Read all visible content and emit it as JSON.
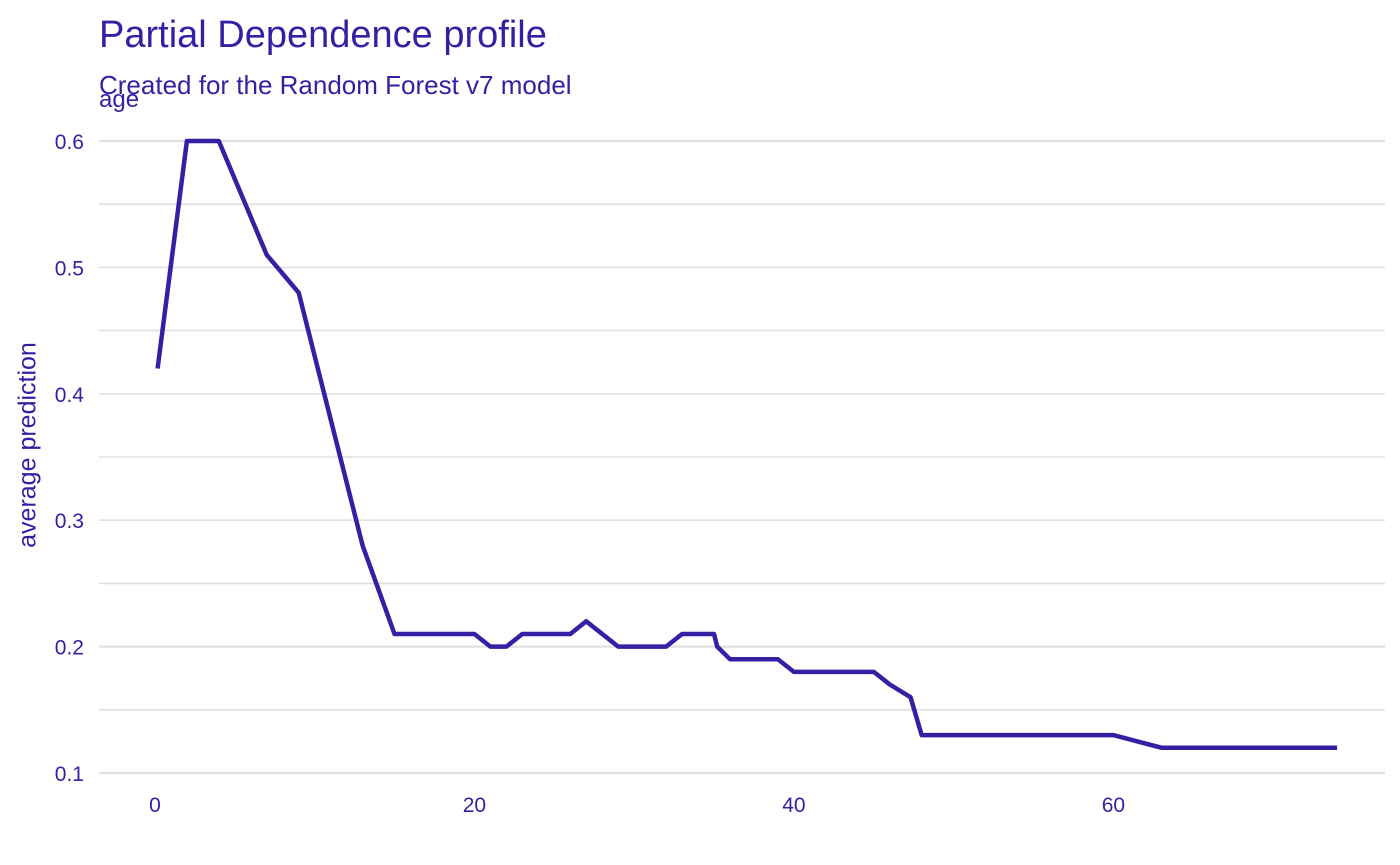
{
  "chart_data": {
    "type": "line",
    "title": "Partial Dependence profile",
    "subtitle": "Created for the Random Forest v7 model",
    "facet_label": "age",
    "xlabel": "",
    "ylabel": "average prediction",
    "xlim": [
      -3.5,
      77
    ],
    "ylim": [
      0.1,
      0.6
    ],
    "x_ticks": [
      0,
      20,
      40,
      60
    ],
    "y_ticks": [
      0.1,
      0.2,
      0.3,
      0.4,
      0.5,
      0.6
    ],
    "grid": true,
    "legend": "none",
    "line_color": "#371ea3",
    "grid_color": "#e0e0e0",
    "series": [
      {
        "x": [
          0.17,
          2,
          3,
          4,
          7,
          9,
          11,
          13,
          15,
          17,
          18,
          20,
          21,
          22,
          23,
          25,
          26,
          27,
          29,
          31,
          32,
          33,
          35,
          35.2,
          36,
          39,
          40,
          45,
          46,
          47.3,
          48,
          60,
          63,
          74
        ],
        "y": [
          0.42,
          0.6,
          0.6,
          0.6,
          0.51,
          0.48,
          0.38,
          0.28,
          0.21,
          0.21,
          0.21,
          0.21,
          0.2,
          0.2,
          0.21,
          0.21,
          0.21,
          0.22,
          0.2,
          0.2,
          0.2,
          0.21,
          0.21,
          0.2,
          0.19,
          0.19,
          0.18,
          0.18,
          0.17,
          0.16,
          0.13,
          0.13,
          0.12,
          0.12
        ]
      }
    ]
  }
}
